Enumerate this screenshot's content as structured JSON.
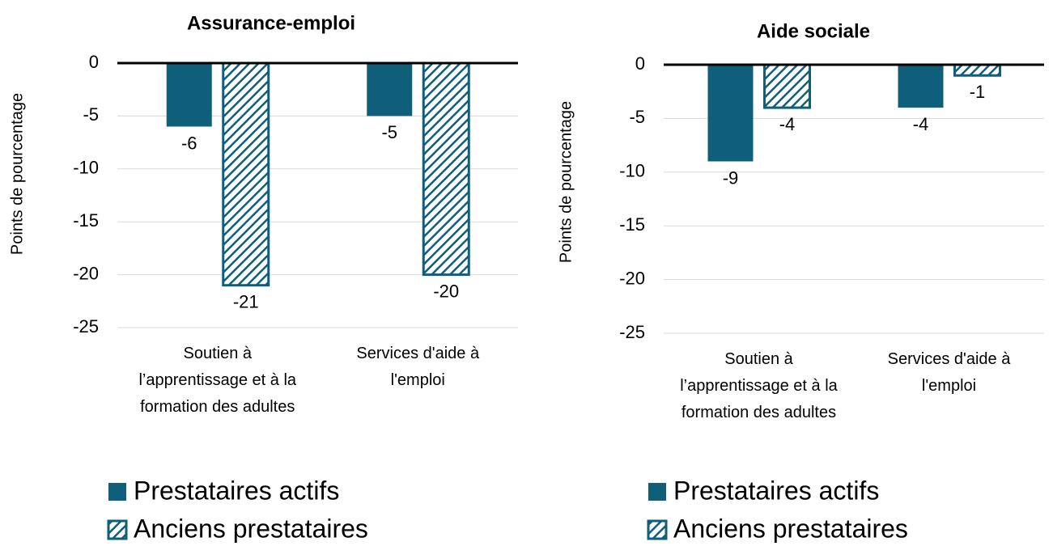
{
  "chart_data": [
    {
      "type": "bar",
      "title": "Assurance-emploi",
      "y_label": "Points de pourcentage",
      "categories": [
        "Soutien à l’apprentissage et à la formation des adultes",
        "Services d'aide à l'emploi"
      ],
      "series": [
        {
          "name": "Prestataires actifs",
          "color": "#0f5f7a",
          "values": [
            -6,
            -5
          ]
        },
        {
          "name": "Anciens prestataires",
          "color": "#0f5f7a",
          "pattern": "hatch",
          "values": [
            -21,
            -20
          ]
        }
      ],
      "ylim": [
        -25,
        0
      ],
      "yticks": [
        0,
        -5,
        -10,
        -15,
        -20,
        -25
      ],
      "grid": true
    },
    {
      "type": "bar",
      "title": "Aide sociale",
      "y_label": "Points de pourcentage",
      "categories": [
        "Soutien à l’apprentissage et à la formation des adultes",
        "Services d'aide à l'emploi"
      ],
      "series": [
        {
          "name": "Prestataires actifs",
          "color": "#0f5f7a",
          "values": [
            -9,
            -4
          ]
        },
        {
          "name": "Anciens prestataires",
          "color": "#0f5f7a",
          "pattern": "hatch",
          "values": [
            -4,
            -1
          ]
        }
      ],
      "ylim": [
        -25,
        0
      ],
      "yticks": [
        0,
        -5,
        -10,
        -15,
        -20,
        -25
      ],
      "grid": true
    }
  ]
}
